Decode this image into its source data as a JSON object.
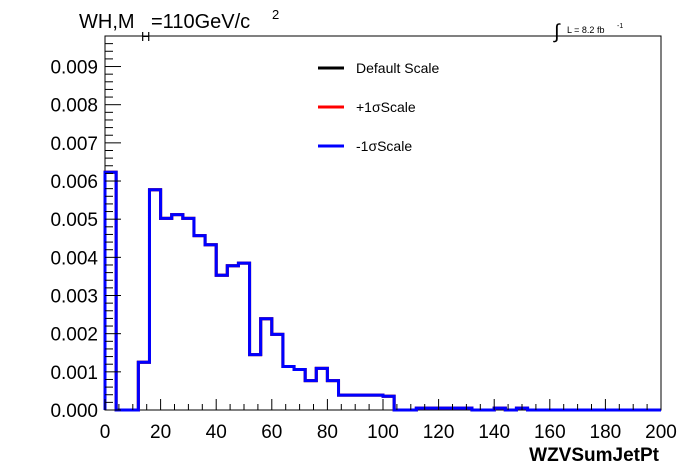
{
  "chart_data": {
    "type": "line",
    "title": "",
    "header": {
      "process": "WH,M",
      "subscript": "H",
      "mass": "=110GeV/c",
      "superscript": "2"
    },
    "lumi": {
      "integral": "∫",
      "text": "L = 8.2 fb",
      "superscript": "-1"
    },
    "xlabel": "WZVSumJetPt",
    "ylabel": "",
    "xlim": [
      0,
      200
    ],
    "ylim": [
      0,
      0.0098
    ],
    "x_ticks": [
      0,
      20,
      40,
      60,
      80,
      100,
      120,
      140,
      160,
      180,
      200
    ],
    "x_tick_labels": [
      "0",
      "20",
      "40",
      "60",
      "80",
      "100",
      "120",
      "140",
      "160",
      "180",
      "200"
    ],
    "y_ticks": [
      0,
      0.001,
      0.002,
      0.003,
      0.004,
      0.005,
      0.006,
      0.007,
      0.008,
      0.009
    ],
    "y_tick_labels": [
      "0.000",
      "0.001",
      "0.002",
      "0.003",
      "0.004",
      "0.005",
      "0.006",
      "0.007",
      "0.008",
      "0.009"
    ],
    "grid": false,
    "legend_position": "top-center",
    "bin_edges": [
      0,
      4,
      8,
      12,
      16,
      20,
      24,
      28,
      32,
      36,
      40,
      44,
      48,
      52,
      56,
      60,
      64,
      68,
      72,
      76,
      80,
      84,
      88,
      92,
      96,
      100,
      104,
      108,
      112,
      116,
      120,
      124,
      128,
      132,
      136,
      140,
      144,
      148,
      152,
      156,
      160,
      164,
      168,
      172,
      176,
      180,
      184,
      188,
      192,
      196,
      200
    ],
    "series": [
      {
        "name": "Default Scale",
        "color": "#000000",
        "values": [
          0.00623,
          0.0,
          0.0,
          0.00125,
          0.00577,
          0.00502,
          0.00512,
          0.00502,
          0.00457,
          0.00433,
          0.00353,
          0.00378,
          0.00385,
          0.00145,
          0.00239,
          0.00198,
          0.00114,
          0.00106,
          0.00077,
          0.00109,
          0.00077,
          0.00039,
          0.00039,
          0.00039,
          0.00039,
          0.00036,
          0.0,
          0.0,
          5e-05,
          5e-05,
          5e-05,
          5e-05,
          5e-05,
          0.0,
          0.0,
          5e-05,
          0.0,
          5e-05,
          0.0,
          0.0,
          0.0,
          0.0,
          0.0,
          0.0,
          0.0,
          0.0,
          0.0,
          0.0,
          0.0,
          0.0
        ]
      },
      {
        "name": "+1σScale",
        "color": "#ff0000",
        "values": [
          0.00623,
          0.0,
          0.0,
          0.00125,
          0.00577,
          0.00502,
          0.00512,
          0.00502,
          0.00457,
          0.00433,
          0.00353,
          0.00378,
          0.00385,
          0.00145,
          0.00239,
          0.00198,
          0.00114,
          0.00106,
          0.00077,
          0.00109,
          0.00077,
          0.00039,
          0.00039,
          0.00039,
          0.00039,
          0.00036,
          0.0,
          0.0,
          5e-05,
          5e-05,
          5e-05,
          5e-05,
          5e-05,
          0.0,
          0.0,
          5e-05,
          0.0,
          5e-05,
          0.0,
          0.0,
          0.0,
          0.0,
          0.0,
          0.0,
          0.0,
          0.0,
          0.0,
          0.0,
          0.0,
          0.0
        ]
      },
      {
        "name": "-1σScale",
        "color": "#0000ff",
        "values": [
          0.00623,
          0.0,
          0.0,
          0.00125,
          0.00577,
          0.00502,
          0.00512,
          0.00502,
          0.00457,
          0.00433,
          0.00353,
          0.00378,
          0.00385,
          0.00145,
          0.00239,
          0.00198,
          0.00114,
          0.00106,
          0.00077,
          0.00109,
          0.00077,
          0.00039,
          0.00039,
          0.00039,
          0.00039,
          0.00036,
          0.0,
          0.0,
          5e-05,
          5e-05,
          5e-05,
          5e-05,
          5e-05,
          0.0,
          0.0,
          5e-05,
          0.0,
          5e-05,
          0.0,
          0.0,
          0.0,
          0.0,
          0.0,
          0.0,
          0.0,
          0.0,
          0.0,
          0.0,
          0.0,
          0.0
        ]
      }
    ]
  }
}
